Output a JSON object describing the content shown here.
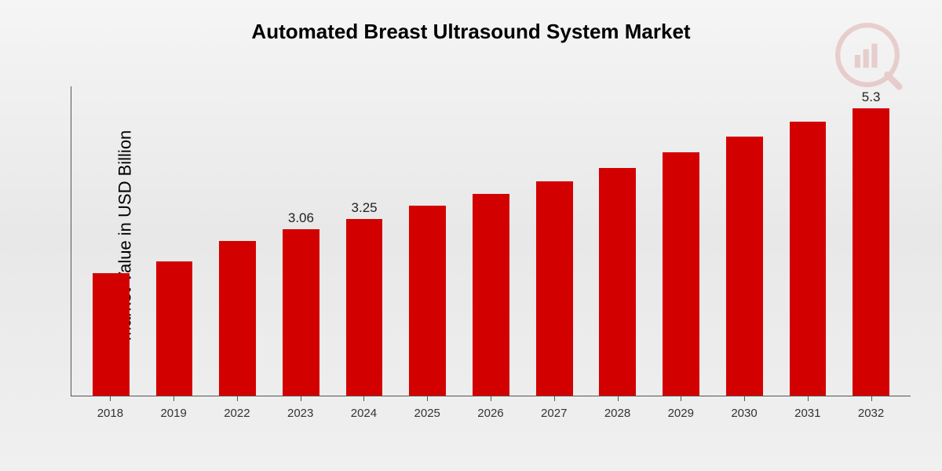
{
  "chart": {
    "type": "bar",
    "title": "Automated Breast Ultrasound System Market",
    "ylabel": "Market Value in USD Billion",
    "title_fontsize": 26,
    "ylabel_fontsize": 22,
    "bar_color": "#d30000",
    "axis_color": "#555555",
    "background_gradient": [
      "#f5f5f5",
      "#e8e8e8",
      "#f0f0f0"
    ],
    "ylim_min": 0,
    "ylim_max": 5.7,
    "bar_width": 0.58,
    "categories": [
      "2018",
      "2019",
      "2022",
      "2023",
      "2024",
      "2025",
      "2026",
      "2027",
      "2028",
      "2029",
      "2030",
      "2031",
      "2032"
    ],
    "values": [
      2.25,
      2.48,
      2.85,
      3.06,
      3.25,
      3.5,
      3.72,
      3.95,
      4.2,
      4.48,
      4.78,
      5.05,
      5.3
    ],
    "data_labels": [
      {
        "index": 3,
        "text": "3.06"
      },
      {
        "index": 4,
        "text": "3.25"
      },
      {
        "index": 12,
        "text": "5.3"
      }
    ],
    "label_fontsize": 17,
    "tick_fontsize": 15
  }
}
